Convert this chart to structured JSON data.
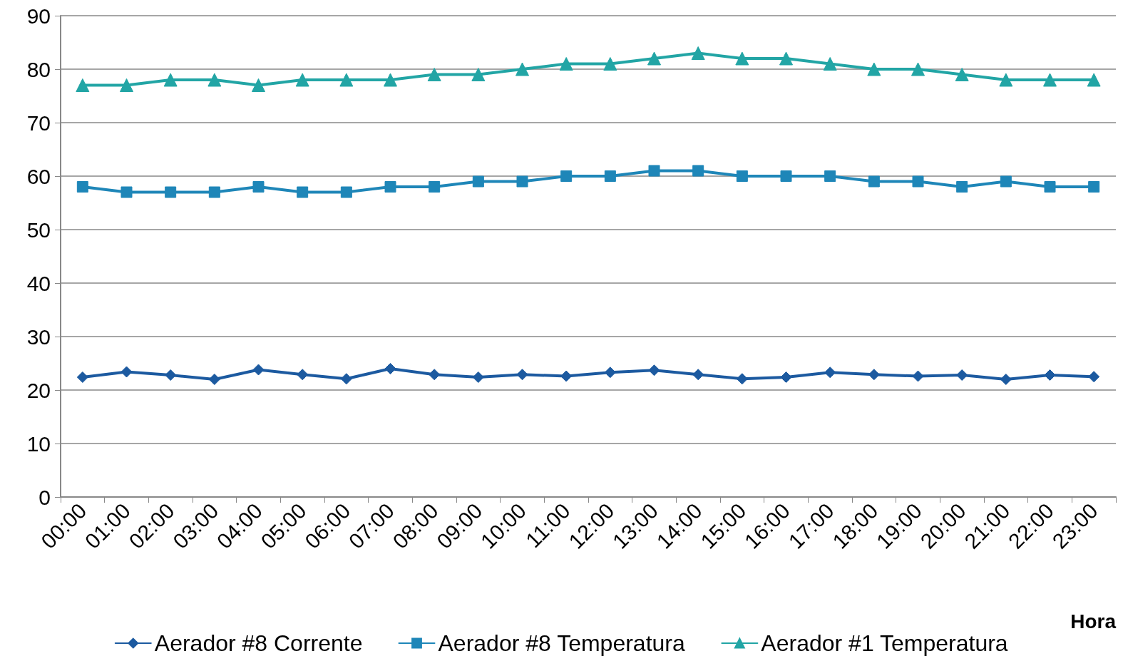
{
  "chart_data": {
    "type": "line",
    "xlabel": "Hora",
    "categories": [
      "00:00",
      "01:00",
      "02:00",
      "03:00",
      "04:00",
      "05:00",
      "06:00",
      "07:00",
      "08:00",
      "09:00",
      "10:00",
      "11:00",
      "12:00",
      "13:00",
      "14:00",
      "15:00",
      "16:00",
      "17:00",
      "18:00",
      "19:00",
      "20:00",
      "21:00",
      "22:00",
      "23:00"
    ],
    "series": [
      {
        "name": "Aerador #8 Corrente",
        "color": "#1c5aa0",
        "marker": "diamond",
        "values": [
          22.4,
          23.4,
          22.8,
          22.0,
          23.8,
          22.9,
          22.1,
          24.0,
          22.9,
          22.4,
          22.9,
          22.6,
          23.3,
          23.7,
          22.9,
          22.1,
          22.4,
          23.3,
          22.9,
          22.6,
          22.8,
          22.0,
          22.8,
          22.5
        ]
      },
      {
        "name": "Aerador #8 Temperatura",
        "color": "#1e86b8",
        "marker": "square",
        "values": [
          58,
          57,
          57,
          57,
          58,
          57,
          57,
          58,
          58,
          59,
          59,
          60,
          60,
          61,
          61,
          60,
          60,
          60,
          59,
          59,
          58,
          59,
          58,
          58
        ]
      },
      {
        "name": "Aerador #1 Temperatura",
        "color": "#22a5a5",
        "marker": "triangle",
        "values": [
          77,
          77,
          78,
          78,
          77,
          78,
          78,
          78,
          79,
          79,
          80,
          81,
          81,
          82,
          83,
          82,
          82,
          81,
          80,
          80,
          79,
          78,
          78,
          78
        ]
      }
    ],
    "ylim": [
      0,
      90
    ],
    "yticks": [
      0,
      10,
      20,
      30,
      40,
      50,
      60,
      70,
      80,
      90
    ],
    "grid": "y",
    "legend": "bottom",
    "line_style": "solid"
  }
}
